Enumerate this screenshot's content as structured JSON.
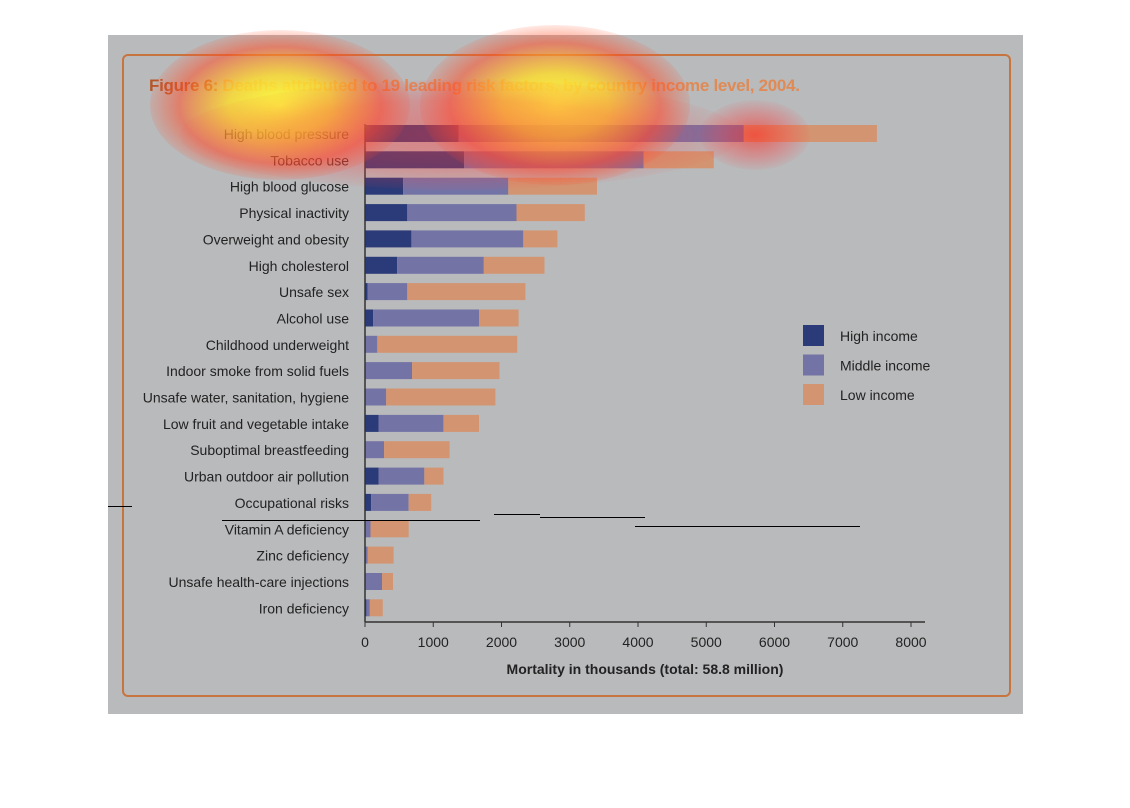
{
  "figure": {
    "title_prefix": "Figure 6:",
    "title_text": "Deaths attributed to 19 leading risk factors, by country income level, 2004."
  },
  "chart_data": {
    "type": "bar",
    "orientation": "horizontal",
    "stacked": true,
    "categories": [
      "High blood pressure",
      "Tobacco use",
      "High blood glucose",
      "Physical inactivity",
      "Overweight and obesity",
      "High cholesterol",
      "Unsafe sex",
      "Alcohol use",
      "Childhood underweight",
      "Indoor smoke from solid fuels",
      "Unsafe water, sanitation, hygiene",
      "Low fruit and vegetable intake",
      "Suboptimal breastfeeding",
      "Urban outdoor air pollution",
      "Occupational risks",
      "Vitamin A deficiency",
      "Zinc deficiency",
      "Unsafe health-care injections",
      "Iron deficiency"
    ],
    "series": [
      {
        "name": "High income",
        "color": "#2b3a78",
        "values": [
          1370,
          1450,
          560,
          620,
          680,
          470,
          40,
          120,
          0,
          0,
          0,
          200,
          0,
          200,
          90,
          0,
          0,
          0,
          20
        ]
      },
      {
        "name": "Middle income",
        "color": "#7473a6",
        "values": [
          4180,
          2630,
          1540,
          1600,
          1640,
          1270,
          580,
          1550,
          180,
          690,
          310,
          950,
          280,
          670,
          550,
          80,
          40,
          250,
          50
        ]
      },
      {
        "name": "Low income",
        "color": "#d39571",
        "values": [
          1950,
          1030,
          1300,
          1000,
          500,
          890,
          1730,
          580,
          2050,
          1280,
          1600,
          520,
          960,
          280,
          330,
          560,
          380,
          160,
          190
        ]
      }
    ],
    "xlabel": "Mortality in thousands (total: 58.8 million)",
    "xlim": [
      0,
      8000
    ],
    "xticks": [
      "0",
      "1000",
      "2000",
      "3000",
      "4000",
      "5000",
      "6000",
      "7000",
      "8000"
    ],
    "grid": false,
    "legend_position": "right"
  }
}
